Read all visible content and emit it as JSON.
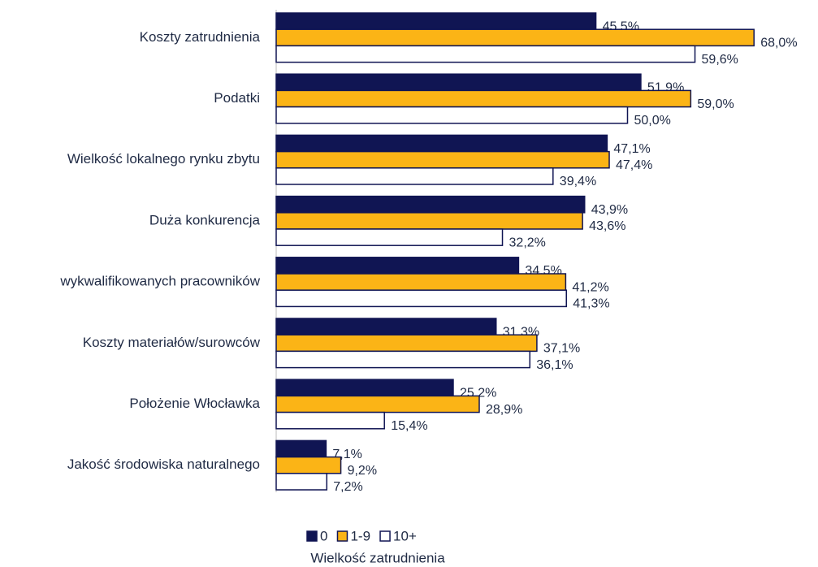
{
  "chart_data": {
    "type": "bar",
    "orientation": "horizontal",
    "categories": [
      "Koszty zatrudnienia",
      "Podatki",
      "Wielkość lokalnego rynku zbytu",
      "Duża konkurencja",
      "wykwalifikowanych pracowników",
      "Koszty materiałów/surowców",
      "Położenie Włocławka",
      "Jakość środowiska naturalnego"
    ],
    "series": [
      {
        "name": "0",
        "color": "#101553",
        "values": [
          45.5,
          51.9,
          47.1,
          43.9,
          34.5,
          31.3,
          25.2,
          7.1
        ],
        "value_labels": [
          "45,5%",
          "51,9%",
          "47,1%",
          "43,9%",
          "34,5%",
          "31,3%",
          "25,2%",
          "7,1%"
        ]
      },
      {
        "name": "1-9",
        "color": "#fbb416",
        "values": [
          68.0,
          59.0,
          47.4,
          43.6,
          41.2,
          37.1,
          28.9,
          9.2
        ],
        "value_labels": [
          "68,0%",
          "59,0%",
          "47,4%",
          "43,6%",
          "41,2%",
          "37,1%",
          "28,9%",
          "9,2%"
        ]
      },
      {
        "name": "10+",
        "color": "#ffffff",
        "values": [
          59.6,
          50.0,
          39.4,
          32.2,
          41.3,
          36.1,
          15.4,
          7.2
        ],
        "value_labels": [
          "59,6%",
          "50,0%",
          "39,4%",
          "32,2%",
          "41,3%",
          "36,1%",
          "15,4%",
          "7,2%"
        ]
      }
    ],
    "outline_color": "#101553",
    "legend_title": "Wielkość zatrudnienia",
    "legend_position": "bottom"
  }
}
